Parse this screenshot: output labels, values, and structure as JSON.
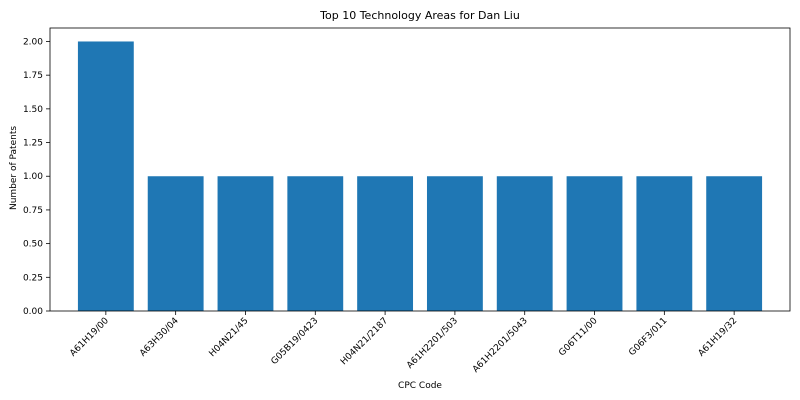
{
  "chart_data": {
    "type": "bar",
    "title": "Top 10 Technology Areas for Dan Liu",
    "xlabel": "CPC Code",
    "ylabel": "Number of Patents",
    "categories": [
      "A61H19/00",
      "A63H30/04",
      "H04N21/45",
      "G05B19/0423",
      "H04N21/2187",
      "A61H2201/503",
      "A61H2201/5043",
      "G06T11/00",
      "G06F3/011",
      "A61H19/32"
    ],
    "values": [
      2,
      1,
      1,
      1,
      1,
      1,
      1,
      1,
      1,
      1
    ],
    "ylim": [
      0,
      2.1
    ],
    "yticks": [
      "0.00",
      "0.25",
      "0.50",
      "0.75",
      "1.00",
      "1.25",
      "1.50",
      "1.75",
      "2.00"
    ],
    "grid": false,
    "bar_color": "#1f77b4"
  }
}
